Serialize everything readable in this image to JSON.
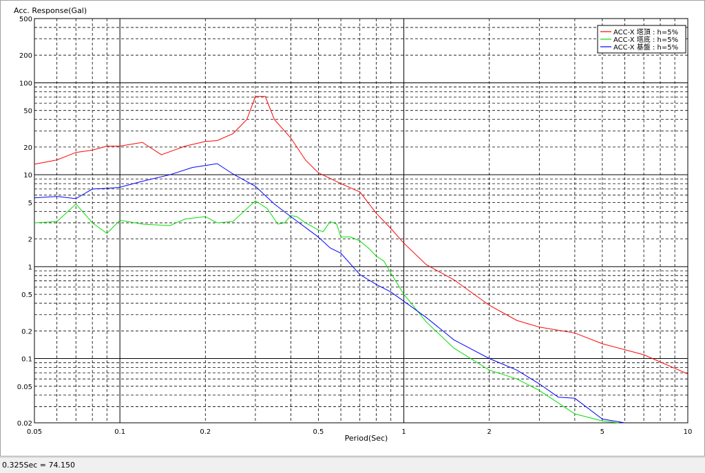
{
  "status": {
    "text": "0.325Sec = 74.150"
  },
  "chart_data": {
    "type": "line",
    "ylabel": "Acc. Response(Gal)",
    "xlabel": "Period(Sec)",
    "x_scale": "log",
    "y_scale": "log",
    "xlim": [
      0.05,
      10
    ],
    "ylim": [
      0.02,
      500
    ],
    "grid": true,
    "legend_position": "top-right",
    "x_ticks": [
      "0.05",
      "0.1",
      "0.2",
      "0.5",
      "1",
      "2",
      "5",
      "10"
    ],
    "y_ticks": [
      "0.02",
      "0.05",
      "0.1",
      "0.2",
      "0.5",
      "1",
      "2",
      "5",
      "10",
      "20",
      "50",
      "100",
      "200",
      "500"
    ],
    "series": [
      {
        "name": "ACC-X 塔頂 : h=5%",
        "color": "#ff0000",
        "x": [
          0.05,
          0.06,
          0.07,
          0.08,
          0.09,
          0.1,
          0.12,
          0.14,
          0.17,
          0.2,
          0.22,
          0.25,
          0.28,
          0.3,
          0.325,
          0.35,
          0.4,
          0.45,
          0.5,
          0.6,
          0.7,
          0.8,
          0.9,
          1.0,
          1.2,
          1.5,
          2.0,
          2.5,
          3.0,
          4.0,
          5.0,
          7.0,
          10.0
        ],
        "y": [
          13,
          14.5,
          17.5,
          18.5,
          20.5,
          20.5,
          22.5,
          16.5,
          20.5,
          23,
          23.5,
          28,
          40,
          71,
          71,
          40,
          25,
          14.5,
          10.5,
          8,
          6.5,
          3.8,
          2.6,
          1.8,
          1.05,
          0.72,
          0.38,
          0.26,
          0.22,
          0.19,
          0.145,
          0.11,
          0.068
        ]
      },
      {
        "name": "ACC-X 塔底 : h=5%",
        "color": "#00dd00",
        "x": [
          0.05,
          0.06,
          0.07,
          0.08,
          0.09,
          0.1,
          0.12,
          0.15,
          0.17,
          0.2,
          0.22,
          0.25,
          0.3,
          0.33,
          0.36,
          0.38,
          0.4,
          0.42,
          0.45,
          0.5,
          0.52,
          0.55,
          0.58,
          0.6,
          0.65,
          0.7,
          0.75,
          0.8,
          0.85,
          0.9,
          1.0,
          1.2,
          1.5,
          2.0,
          2.5,
          3.0,
          4.0,
          5.0,
          5.7
        ],
        "y": [
          3.0,
          3.1,
          4.8,
          3.0,
          2.3,
          3.2,
          2.9,
          2.8,
          3.3,
          3.5,
          3.0,
          3.1,
          5.2,
          4.3,
          2.9,
          3.0,
          3.6,
          3.5,
          3.0,
          2.5,
          2.4,
          3.1,
          2.9,
          2.1,
          2.1,
          1.9,
          1.6,
          1.3,
          1.15,
          0.85,
          0.5,
          0.25,
          0.13,
          0.075,
          0.06,
          0.045,
          0.025,
          0.021,
          0.02
        ]
      },
      {
        "name": "ACC-X 基盤 : h=5%",
        "color": "#0000ff",
        "x": [
          0.05,
          0.06,
          0.07,
          0.08,
          0.09,
          0.1,
          0.12,
          0.15,
          0.18,
          0.2,
          0.22,
          0.25,
          0.3,
          0.35,
          0.4,
          0.5,
          0.55,
          0.6,
          0.7,
          0.8,
          0.9,
          1.0,
          1.2,
          1.5,
          2.0,
          2.5,
          3.0,
          3.5,
          4.0,
          5.0,
          6.0
        ],
        "y": [
          5.6,
          5.8,
          5.5,
          7.0,
          7.1,
          7.3,
          8.5,
          10,
          12,
          12.6,
          13.2,
          10.2,
          7.5,
          4.8,
          3.5,
          2.1,
          1.6,
          1.4,
          0.82,
          0.64,
          0.53,
          0.42,
          0.28,
          0.16,
          0.1,
          0.075,
          0.053,
          0.038,
          0.037,
          0.022,
          0.02
        ]
      }
    ]
  }
}
